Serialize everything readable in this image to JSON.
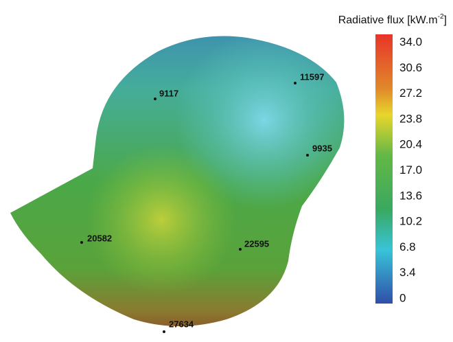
{
  "colorbar": {
    "title": "Radiative flux [kW.m",
    "title_sup": "-2",
    "title_end": "]",
    "ticks": [
      "34.0",
      "30.6",
      "27.2",
      "23.8",
      "20.4",
      "17.0",
      "13.6",
      "10.2",
      "6.8",
      "3.4",
      "0"
    ]
  },
  "points": [
    "9117",
    "11597",
    "9935",
    "20582",
    "22595",
    "27634"
  ]
}
